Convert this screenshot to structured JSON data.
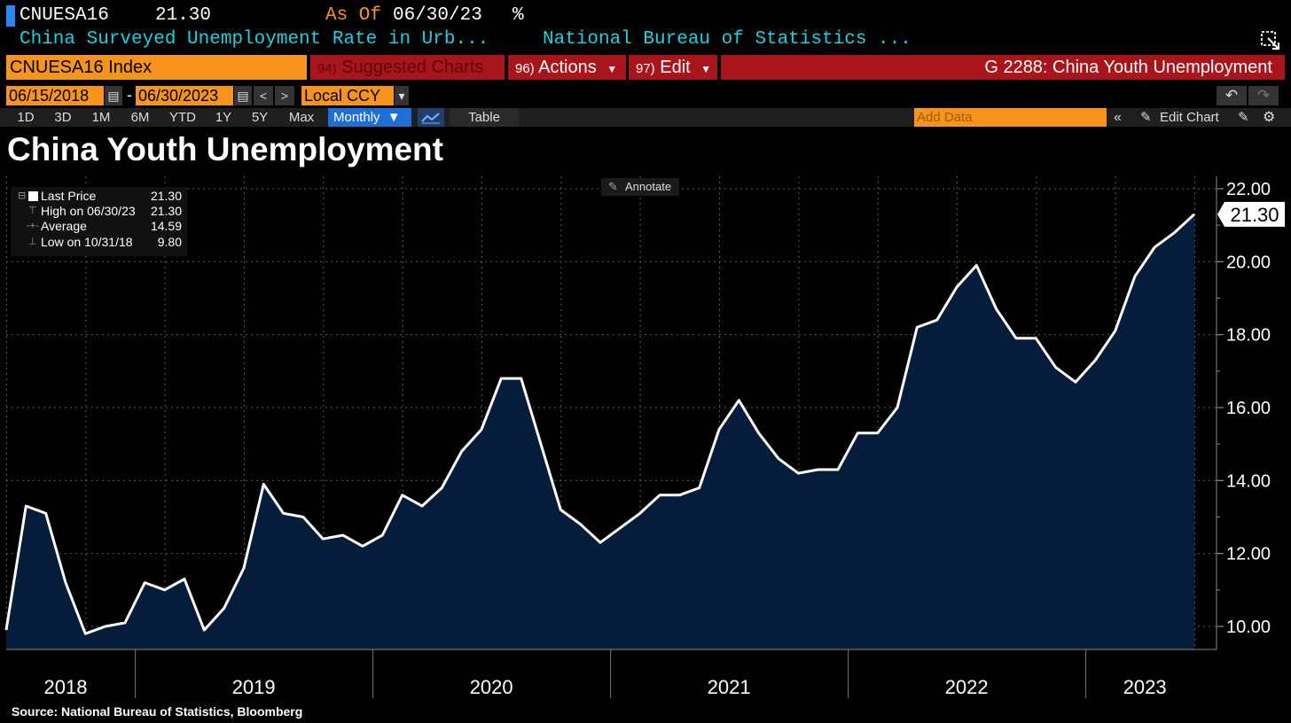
{
  "header": {
    "ticker": "CNUESA16",
    "last_value": "21.30",
    "as_of_label": "As Of",
    "as_of_date": "06/30/23",
    "unit": "%",
    "description": "China Surveyed Unemployment Rate in Urb...",
    "source": "National Bureau of Statistics ..."
  },
  "toolbar": {
    "index_field": "CNUESA16 Index",
    "suggested_num": "94)",
    "suggested_label": "Suggested Charts",
    "actions_num": "96)",
    "actions_label": "Actions",
    "edit_num": "97)",
    "edit_label": "Edit",
    "chart_code_title": "G 2288: China Youth Unemployment",
    "start_date": "06/15/2018",
    "end_date": "06/30/2023",
    "currency": "Local CCY",
    "periods": [
      "1D",
      "3D",
      "1M",
      "6M",
      "YTD",
      "1Y",
      "5Y",
      "Max"
    ],
    "frequency": "Monthly",
    "table_label": "Table",
    "add_data_placeholder": "Add Data",
    "edit_chart_label": "Edit Chart",
    "accent_orange": "#f7941d",
    "accent_red": "#a8151b",
    "accent_blue": "#1f6fd6"
  },
  "legend": {
    "last_price_label": "Last Price",
    "last_price_value": "21.30",
    "high_label": "High on 06/30/23",
    "high_value": "21.30",
    "average_label": "Average",
    "average_value": "14.59",
    "low_label": "Low on 10/31/18",
    "low_value": "9.80"
  },
  "annotate_label": "Annotate",
  "source_note": "Source: National Bureau of Statistics, Bloomberg",
  "chart_data": {
    "type": "area",
    "title": "China Youth Unemployment",
    "xlabel": "",
    "ylabel": "",
    "ylim": [
      9.5,
      22.4
    ],
    "y_ticks": [
      "10.00",
      "12.00",
      "14.00",
      "16.00",
      "18.00",
      "20.00",
      "22.00"
    ],
    "x_tick_labels": [
      "2018",
      "2019",
      "2020",
      "2021",
      "2022",
      "2023"
    ],
    "last_value_label": "21.30",
    "grid": true,
    "line_color": "#ffffff",
    "fill_color": "#051c3b",
    "x": [
      "2018-06",
      "2018-07",
      "2018-08",
      "2018-09",
      "2018-10",
      "2018-11",
      "2018-12",
      "2019-01",
      "2019-02",
      "2019-03",
      "2019-04",
      "2019-05",
      "2019-06",
      "2019-07",
      "2019-08",
      "2019-09",
      "2019-10",
      "2019-11",
      "2019-12",
      "2020-01",
      "2020-02",
      "2020-03",
      "2020-04",
      "2020-05",
      "2020-06",
      "2020-07",
      "2020-08",
      "2020-09",
      "2020-10",
      "2020-11",
      "2020-12",
      "2021-01",
      "2021-02",
      "2021-03",
      "2021-04",
      "2021-05",
      "2021-06",
      "2021-07",
      "2021-08",
      "2021-09",
      "2021-10",
      "2021-11",
      "2021-12",
      "2022-01",
      "2022-02",
      "2022-03",
      "2022-04",
      "2022-05",
      "2022-06",
      "2022-07",
      "2022-08",
      "2022-09",
      "2022-10",
      "2022-11",
      "2022-12",
      "2023-01",
      "2023-02",
      "2023-03",
      "2023-04",
      "2023-05",
      "2023-06"
    ],
    "values": [
      9.9,
      13.3,
      13.1,
      11.2,
      9.8,
      10.0,
      10.1,
      11.2,
      11.0,
      11.3,
      9.9,
      10.5,
      11.6,
      13.9,
      13.1,
      13.0,
      12.4,
      12.5,
      12.2,
      12.5,
      13.6,
      13.3,
      13.8,
      14.8,
      15.4,
      16.8,
      16.8,
      15.0,
      13.2,
      12.8,
      12.3,
      12.7,
      13.1,
      13.6,
      13.6,
      13.8,
      15.4,
      16.2,
      15.3,
      14.6,
      14.2,
      14.3,
      14.3,
      15.3,
      15.3,
      16.0,
      18.2,
      18.4,
      19.3,
      19.9,
      18.7,
      17.9,
      17.9,
      17.1,
      16.7,
      17.3,
      18.1,
      19.6,
      20.4,
      20.8,
      21.3
    ]
  }
}
